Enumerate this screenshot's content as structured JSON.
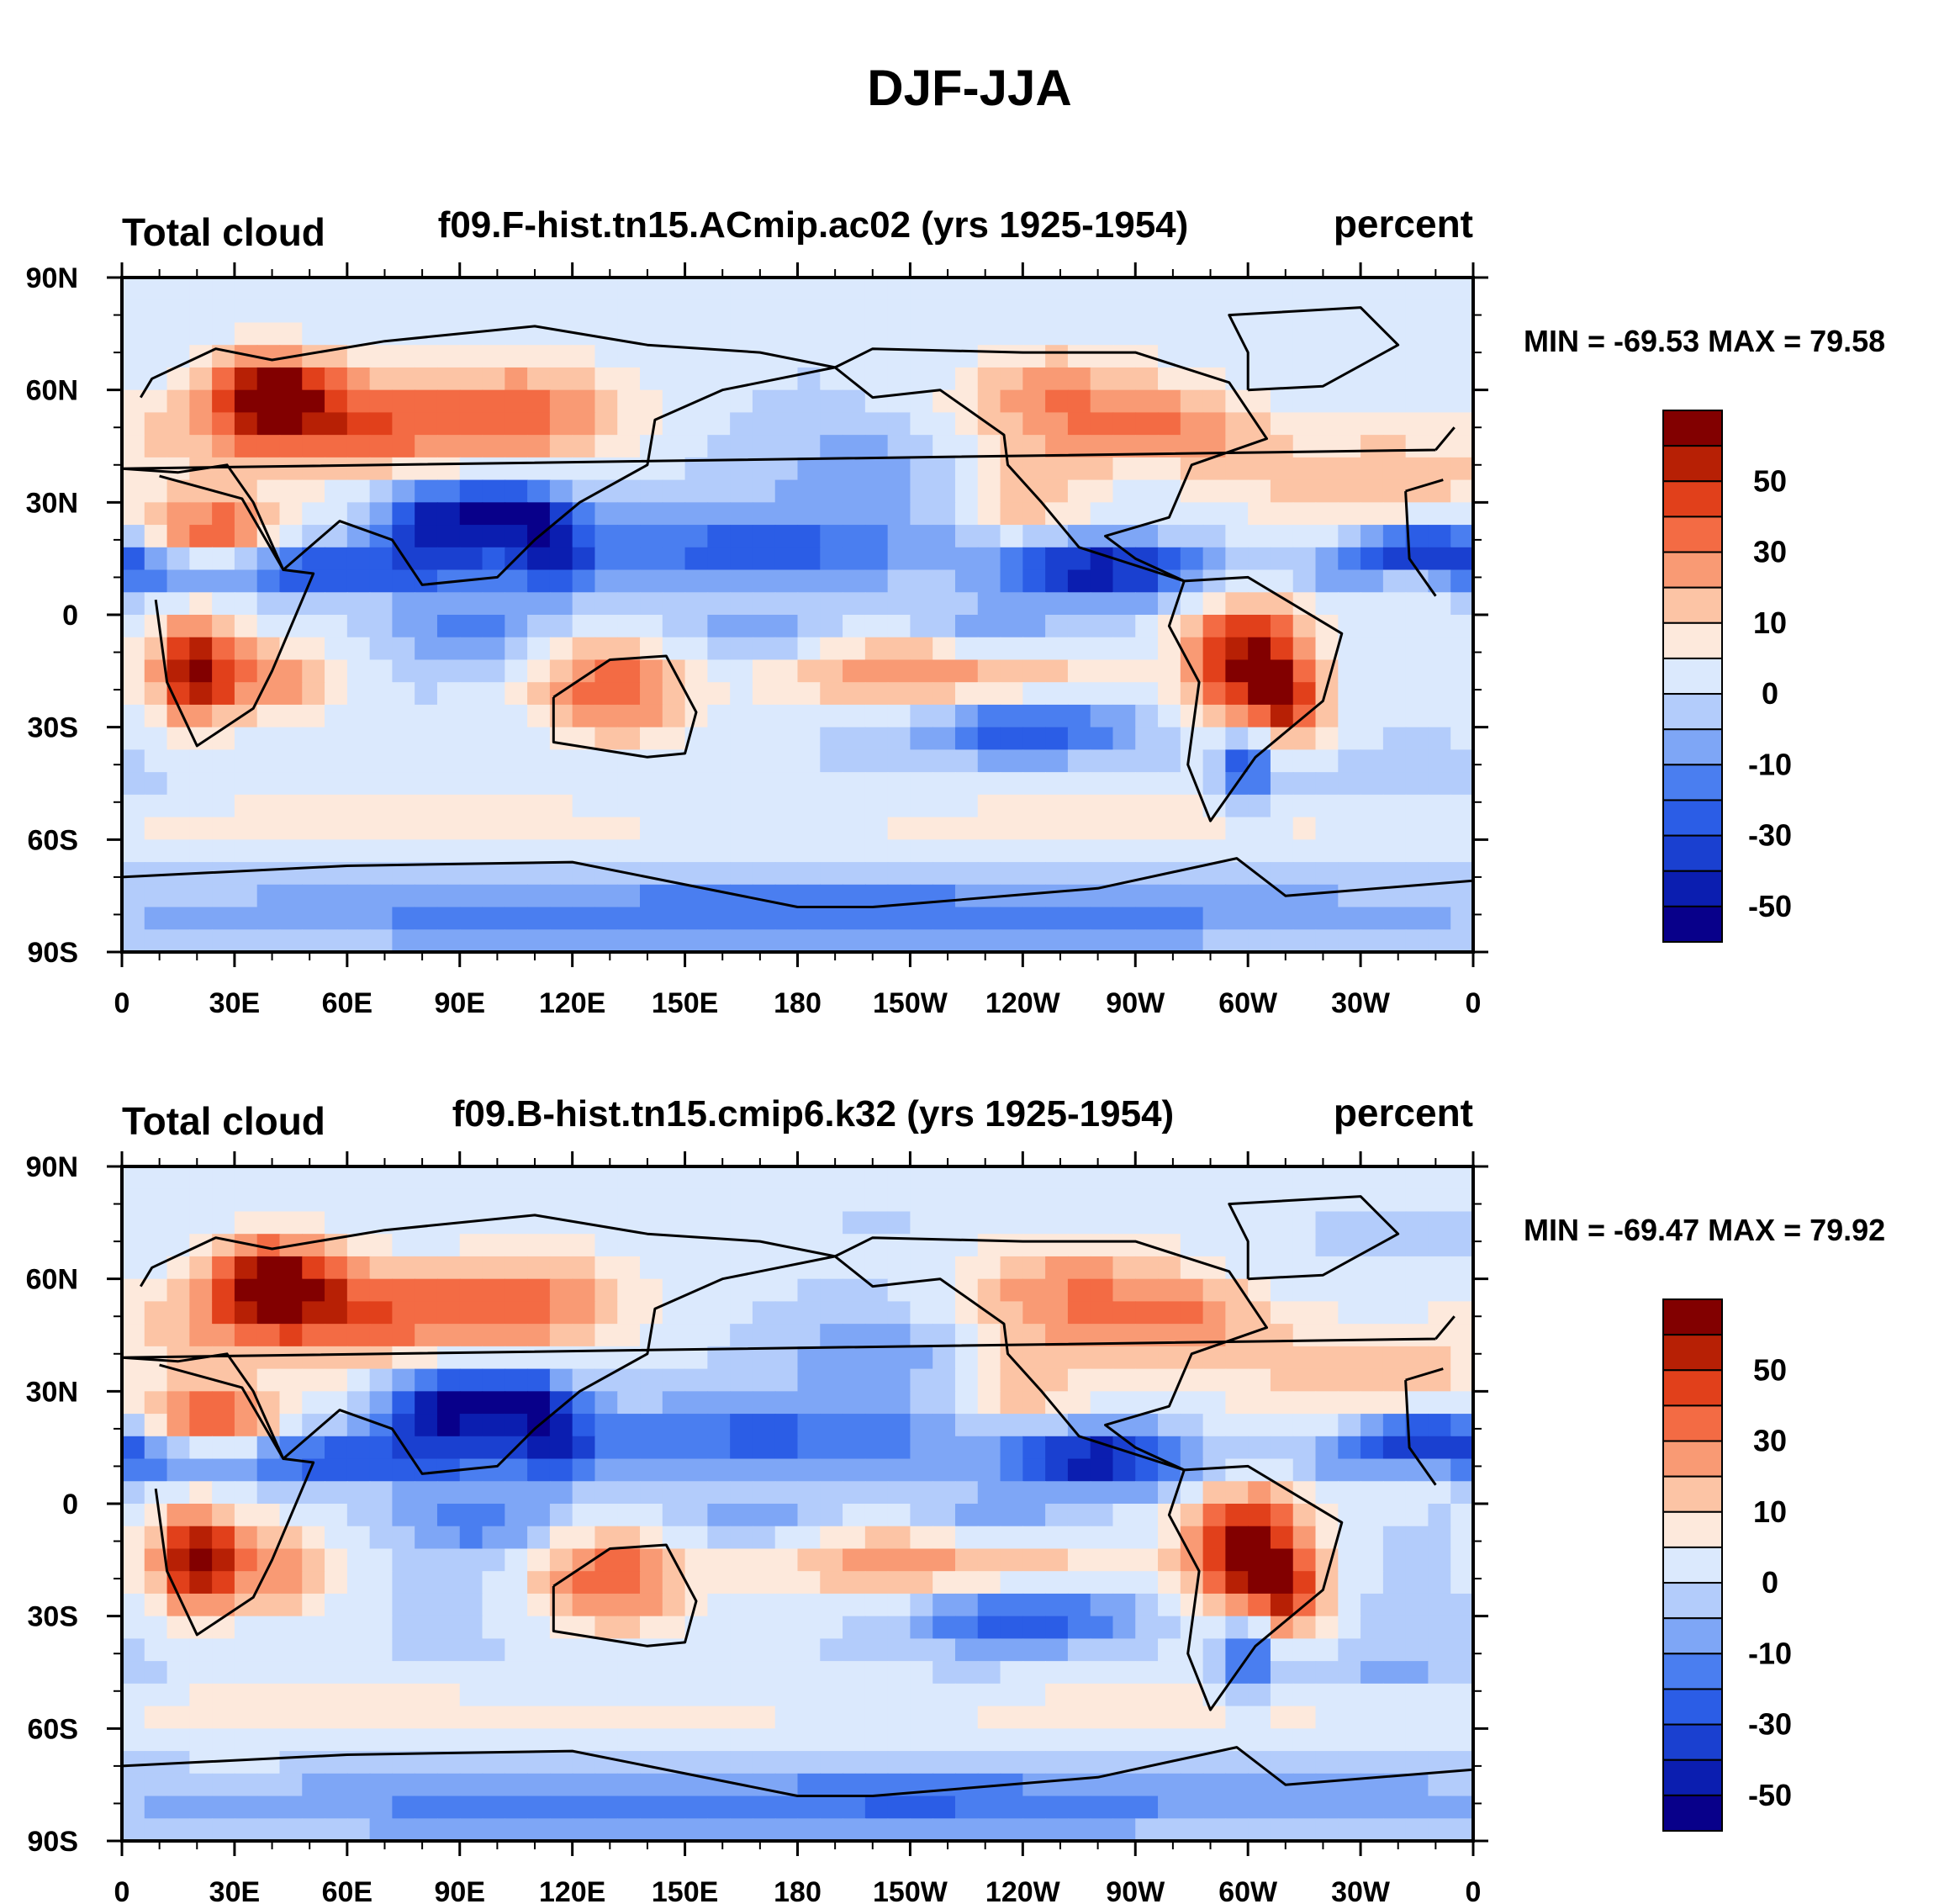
{
  "figure": {
    "title": "DJF-JJA"
  },
  "axes": {
    "lat_ticks": [
      "90N",
      "60N",
      "30N",
      "0",
      "30S",
      "60S",
      "90S"
    ],
    "lon_ticks": [
      "0",
      "30E",
      "60E",
      "90E",
      "120E",
      "150E",
      "180",
      "150W",
      "120W",
      "90W",
      "60W",
      "30W",
      "0"
    ]
  },
  "colorbar": {
    "labels": [
      "50",
      "30",
      "10",
      "0",
      "-10",
      "-30",
      "-50"
    ],
    "levels": [
      -60,
      -50,
      -40,
      -30,
      -20,
      -10,
      0,
      10,
      20,
      30,
      40,
      50,
      60
    ],
    "colors": [
      "#08008a",
      "#0b1eb0",
      "#1a40d0",
      "#2b5de6",
      "#4a7ef0",
      "#7ea6f6",
      "#b3ccfb",
      "#dbe9fd",
      "#fde9dc",
      "#fcc4a5",
      "#f99a74",
      "#f36b44",
      "#e1401b",
      "#b72005",
      "#820000"
    ]
  },
  "panels": [
    {
      "left_label": "Total cloud",
      "center_label": "f09.F-hist.tn15.ACmip.ac02 (yrs 1925-1954)",
      "right_label": "percent",
      "stats": "MIN = -69.53 MAX =  79.58",
      "min": -69.53,
      "max": 79.58
    },
    {
      "left_label": "Total cloud",
      "center_label": "f09.B-hist.tn15.cmip6.k32 (yrs 1925-1954)",
      "right_label": "percent",
      "stats": "MIN = -69.47 MAX =  79.92",
      "min": -69.47,
      "max": 79.92
    }
  ]
}
